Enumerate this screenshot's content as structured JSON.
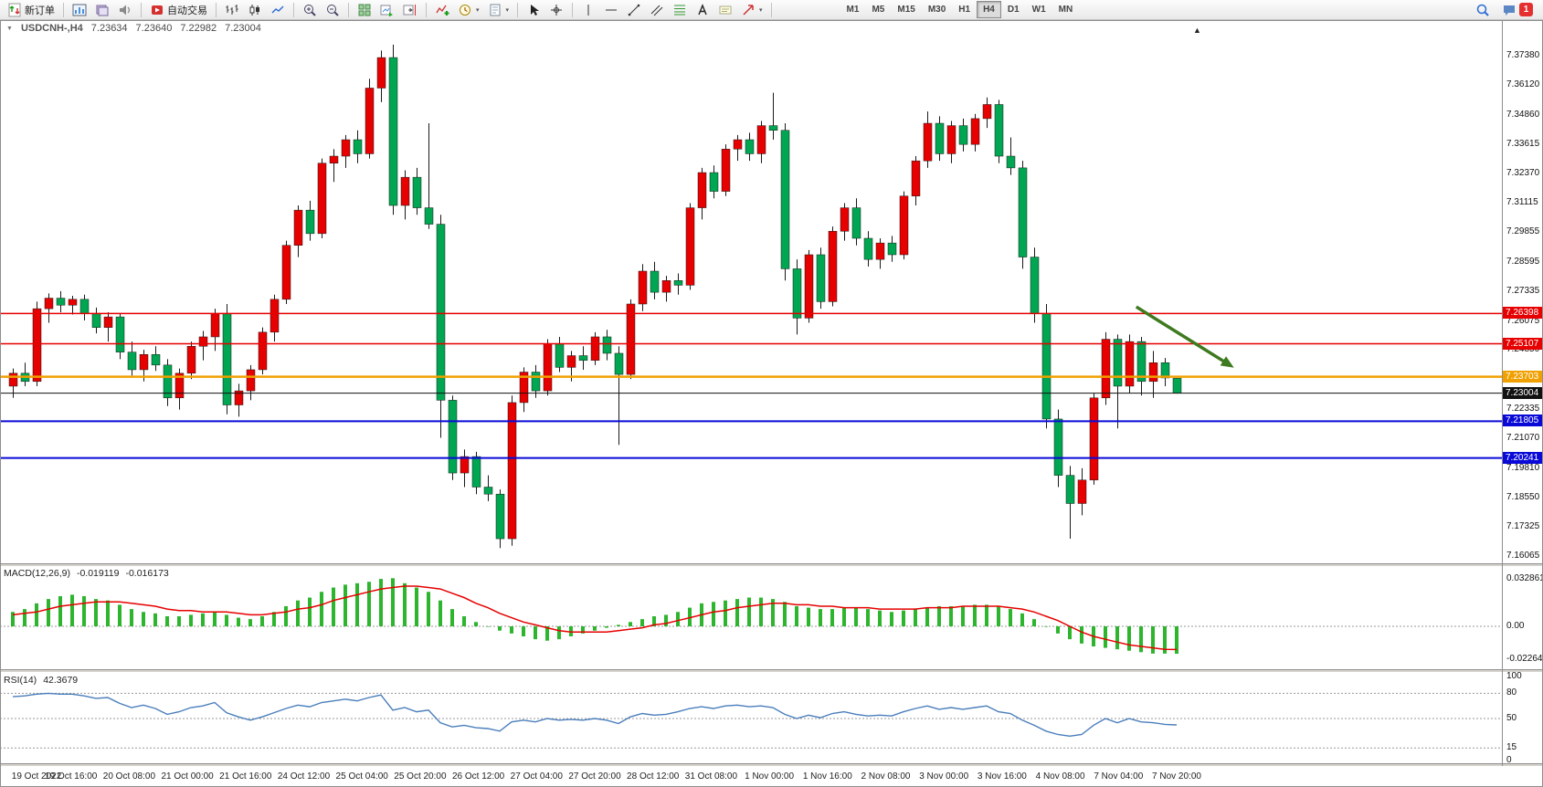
{
  "toolbar": {
    "new_order_label": "新订单",
    "autotrade_label": "自动交易",
    "timeframes": [
      "M1",
      "M5",
      "M15",
      "M30",
      "H1",
      "H4",
      "D1",
      "W1",
      "MN"
    ],
    "active_timeframe": "H4",
    "notification_count": "1"
  },
  "chart": {
    "title": {
      "symbol": "USDCNH-,H4",
      "open": "7.23634",
      "high": "7.23640",
      "low": "7.22982",
      "close": "7.23004"
    },
    "price_axis_labels": [
      "7.37380",
      "7.36120",
      "7.34860",
      "7.33615",
      "7.32370",
      "7.31115",
      "7.29855",
      "7.28595",
      "7.27335",
      "7.26075",
      "7.24850",
      "7.23590",
      "7.22335",
      "7.21070",
      "7.19810",
      "7.18550",
      "7.17325",
      "7.16065"
    ],
    "line_levels": [
      {
        "label": "7.26398",
        "value": 7.26398,
        "color": "#e60000",
        "width": 1.5
      },
      {
        "label": "7.25107",
        "value": 7.25107,
        "color": "#e60000",
        "width": 1.5
      },
      {
        "label": "7.23703",
        "value": 7.23703,
        "color": "#f0a000",
        "width": 2.5
      },
      {
        "label": "7.23004",
        "value": 7.23004,
        "color": "#111111",
        "width": 1
      },
      {
        "label": "7.21805",
        "value": 7.21805,
        "color": "#0a0ad8",
        "width": 2
      },
      {
        "label": "7.20241",
        "value": 7.20241,
        "color": "#0a0ad8",
        "width": 2
      }
    ],
    "arrow": {
      "color": "#3e7a1f",
      "from_bar": 94.6,
      "from_price": 7.2668,
      "to_bar": 102.5,
      "to_price": 7.2419
    }
  },
  "macd": {
    "name": "MACD(12,26,9)",
    "value": "-0.019119",
    "signal_value": "-0.016173",
    "axis_labels": [
      "0.032861",
      "0.00",
      "-0.022641"
    ],
    "histogram_color": "#2db52d",
    "signal_color": "#e60000"
  },
  "rsi": {
    "name": "RSI(14)",
    "value": "42.3679",
    "axis_labels": [
      "100",
      "80",
      "50",
      "15",
      "0"
    ],
    "levels": [
      80,
      50,
      15
    ],
    "line_color": "#4a7ebb"
  },
  "time_axis": {
    "labels": [
      "19 Oct 2022",
      "19 Oct 16:00",
      "20 Oct 08:00",
      "21 Oct 00:00",
      "21 Oct 16:00",
      "24 Oct 12:00",
      "25 Oct 04:00",
      "25 Oct 20:00",
      "26 Oct 12:00",
      "27 Oct 04:00",
      "27 Oct 20:00",
      "28 Oct 12:00",
      "31 Oct 08:00",
      "1 Nov 00:00",
      "1 Nov 16:00",
      "2 Nov 08:00",
      "3 Nov 00:00",
      "3 Nov 16:00",
      "4 Nov 08:00",
      "7 Nov 04:00",
      "7 Nov 20:00"
    ]
  },
  "chart_data": {
    "type": "candlestick",
    "symbol": "USDCNH",
    "period": "H4",
    "price_range": [
      7.16065,
      7.3738
    ],
    "colors": {
      "bull": "#e60000",
      "bear": "#00a651",
      "wick": "#1a1a1a"
    },
    "candles": [
      [
        7.233,
        7.2405,
        7.228,
        7.2385
      ],
      [
        7.2385,
        7.243,
        7.233,
        7.235
      ],
      [
        7.235,
        7.269,
        7.233,
        7.266
      ],
      [
        7.266,
        7.2725,
        7.26,
        7.2705
      ],
      [
        7.2705,
        7.2735,
        7.2645,
        7.2675
      ],
      [
        7.2675,
        7.2715,
        7.2635,
        7.27
      ],
      [
        7.27,
        7.272,
        7.261,
        7.264
      ],
      [
        7.264,
        7.2665,
        7.2555,
        7.258
      ],
      [
        7.258,
        7.2645,
        7.252,
        7.2625
      ],
      [
        7.2625,
        7.264,
        7.2445,
        7.2475
      ],
      [
        7.2475,
        7.252,
        7.2375,
        7.24
      ],
      [
        7.24,
        7.2485,
        7.235,
        7.2465
      ],
      [
        7.2465,
        7.25,
        7.2395,
        7.242
      ],
      [
        7.242,
        7.2445,
        7.2245,
        7.228
      ],
      [
        7.228,
        7.2405,
        7.223,
        7.2385
      ],
      [
        7.2385,
        7.252,
        7.236,
        7.25
      ],
      [
        7.25,
        7.2565,
        7.244,
        7.254
      ],
      [
        7.254,
        7.266,
        7.248,
        7.264
      ],
      [
        7.264,
        7.268,
        7.221,
        7.225
      ],
      [
        7.225,
        7.234,
        7.22,
        7.231
      ],
      [
        7.231,
        7.242,
        7.227,
        7.24
      ],
      [
        7.24,
        7.258,
        7.238,
        7.256
      ],
      [
        7.256,
        7.272,
        7.252,
        7.27
      ],
      [
        7.27,
        7.295,
        7.268,
        7.293
      ],
      [
        7.293,
        7.31,
        7.288,
        7.308
      ],
      [
        7.308,
        7.312,
        7.295,
        7.298
      ],
      [
        7.298,
        7.33,
        7.296,
        7.328
      ],
      [
        7.328,
        7.334,
        7.32,
        7.331
      ],
      [
        7.331,
        7.34,
        7.326,
        7.338
      ],
      [
        7.338,
        7.342,
        7.328,
        7.332
      ],
      [
        7.332,
        7.364,
        7.33,
        7.36
      ],
      [
        7.36,
        7.376,
        7.354,
        7.373
      ],
      [
        7.373,
        7.3785,
        7.306,
        7.31
      ],
      [
        7.31,
        7.325,
        7.304,
        7.322
      ],
      [
        7.322,
        7.326,
        7.306,
        7.309
      ],
      [
        7.309,
        7.345,
        7.3,
        7.302
      ],
      [
        7.302,
        7.306,
        7.211,
        7.227
      ],
      [
        7.227,
        7.229,
        7.193,
        7.196
      ],
      [
        7.196,
        7.206,
        7.19,
        7.203
      ],
      [
        7.203,
        7.205,
        7.187,
        7.19
      ],
      [
        7.19,
        7.195,
        7.184,
        7.187
      ],
      [
        7.187,
        7.189,
        7.164,
        7.168
      ],
      [
        7.168,
        7.229,
        7.165,
        7.226
      ],
      [
        7.226,
        7.241,
        7.222,
        7.239
      ],
      [
        7.239,
        7.242,
        7.228,
        7.231
      ],
      [
        7.231,
        7.253,
        7.229,
        7.251
      ],
      [
        7.251,
        7.254,
        7.239,
        7.241
      ],
      [
        7.241,
        7.248,
        7.235,
        7.246
      ],
      [
        7.246,
        7.25,
        7.24,
        7.244
      ],
      [
        7.244,
        7.256,
        7.242,
        7.254
      ],
      [
        7.254,
        7.257,
        7.244,
        7.247
      ],
      [
        7.247,
        7.25,
        7.208,
        7.238
      ],
      [
        7.238,
        7.27,
        7.236,
        7.268
      ],
      [
        7.268,
        7.285,
        7.265,
        7.282
      ],
      [
        7.282,
        7.286,
        7.27,
        7.273
      ],
      [
        7.273,
        7.28,
        7.269,
        7.278
      ],
      [
        7.278,
        7.281,
        7.272,
        7.276
      ],
      [
        7.276,
        7.311,
        7.274,
        7.309
      ],
      [
        7.309,
        7.326,
        7.304,
        7.324
      ],
      [
        7.324,
        7.327,
        7.313,
        7.316
      ],
      [
        7.316,
        7.336,
        7.314,
        7.334
      ],
      [
        7.334,
        7.34,
        7.329,
        7.338
      ],
      [
        7.338,
        7.341,
        7.329,
        7.332
      ],
      [
        7.332,
        7.346,
        7.328,
        7.344
      ],
      [
        7.344,
        7.358,
        7.338,
        7.342
      ],
      [
        7.342,
        7.345,
        7.278,
        7.283
      ],
      [
        7.283,
        7.287,
        7.255,
        7.262
      ],
      [
        7.262,
        7.291,
        7.26,
        7.289
      ],
      [
        7.289,
        7.292,
        7.266,
        7.269
      ],
      [
        7.269,
        7.301,
        7.267,
        7.299
      ],
      [
        7.299,
        7.311,
        7.295,
        7.309
      ],
      [
        7.309,
        7.313,
        7.293,
        7.296
      ],
      [
        7.296,
        7.299,
        7.284,
        7.287
      ],
      [
        7.287,
        7.296,
        7.283,
        7.294
      ],
      [
        7.294,
        7.297,
        7.286,
        7.289
      ],
      [
        7.289,
        7.316,
        7.287,
        7.314
      ],
      [
        7.314,
        7.331,
        7.31,
        7.329
      ],
      [
        7.329,
        7.35,
        7.326,
        7.345
      ],
      [
        7.345,
        7.348,
        7.329,
        7.332
      ],
      [
        7.332,
        7.346,
        7.328,
        7.344
      ],
      [
        7.344,
        7.347,
        7.333,
        7.336
      ],
      [
        7.336,
        7.349,
        7.333,
        7.347
      ],
      [
        7.347,
        7.356,
        7.343,
        7.353
      ],
      [
        7.353,
        7.355,
        7.328,
        7.331
      ],
      [
        7.331,
        7.339,
        7.323,
        7.326
      ],
      [
        7.326,
        7.329,
        7.283,
        7.288
      ],
      [
        7.288,
        7.292,
        7.26,
        7.264
      ],
      [
        7.264,
        7.268,
        7.215,
        7.219
      ],
      [
        7.219,
        7.223,
        7.19,
        7.195
      ],
      [
        7.195,
        7.199,
        7.168,
        7.183
      ],
      [
        7.183,
        7.198,
        7.178,
        7.193
      ],
      [
        7.193,
        7.23,
        7.191,
        7.228
      ],
      [
        7.228,
        7.256,
        7.225,
        7.253
      ],
      [
        7.253,
        7.255,
        7.215,
        7.233
      ],
      [
        7.233,
        7.255,
        7.23,
        7.252
      ],
      [
        7.252,
        7.254,
        7.229,
        7.235
      ],
      [
        7.235,
        7.248,
        7.228,
        7.243
      ],
      [
        7.243,
        7.245,
        7.233,
        7.2365
      ],
      [
        7.23634,
        7.2364,
        7.22982,
        7.23004
      ]
    ],
    "indicators": {
      "macd": {
        "range": [
          -0.022641,
          0.032861
        ],
        "histogram": [
          0.01,
          0.012,
          0.016,
          0.019,
          0.021,
          0.022,
          0.021,
          0.019,
          0.018,
          0.015,
          0.012,
          0.01,
          0.009,
          0.007,
          0.007,
          0.008,
          0.009,
          0.01,
          0.008,
          0.006,
          0.005,
          0.007,
          0.01,
          0.014,
          0.018,
          0.02,
          0.024,
          0.027,
          0.029,
          0.03,
          0.031,
          0.033,
          0.0335,
          0.03,
          0.027,
          0.024,
          0.018,
          0.012,
          0.007,
          0.003,
          0.0,
          -0.003,
          -0.005,
          -0.007,
          -0.009,
          -0.01,
          -0.009,
          -0.007,
          -0.005,
          -0.003,
          -0.001,
          0.001,
          0.003,
          0.005,
          0.007,
          0.008,
          0.01,
          0.013,
          0.016,
          0.017,
          0.018,
          0.019,
          0.02,
          0.02,
          0.019,
          0.017,
          0.014,
          0.013,
          0.012,
          0.012,
          0.013,
          0.013,
          0.012,
          0.011,
          0.01,
          0.011,
          0.012,
          0.013,
          0.014,
          0.014,
          0.014,
          0.015,
          0.015,
          0.014,
          0.012,
          0.009,
          0.005,
          0.0,
          -0.005,
          -0.009,
          -0.012,
          -0.014,
          -0.015,
          -0.016,
          -0.017,
          -0.018,
          -0.019,
          -0.019,
          -0.019119
        ],
        "signal": [
          0.008,
          0.009,
          0.01,
          0.012,
          0.014,
          0.015,
          0.016,
          0.017,
          0.017,
          0.017,
          0.016,
          0.015,
          0.014,
          0.012,
          0.011,
          0.011,
          0.01,
          0.01,
          0.01,
          0.009,
          0.008,
          0.008,
          0.009,
          0.01,
          0.012,
          0.013,
          0.015,
          0.018,
          0.02,
          0.022,
          0.024,
          0.026,
          0.027,
          0.028,
          0.028,
          0.027,
          0.026,
          0.023,
          0.02,
          0.016,
          0.013,
          0.009,
          0.006,
          0.003,
          0.001,
          -0.001,
          -0.003,
          -0.004,
          -0.004,
          -0.004,
          -0.004,
          -0.003,
          -0.002,
          -0.001,
          0.001,
          0.002,
          0.004,
          0.006,
          0.008,
          0.01,
          0.011,
          0.013,
          0.014,
          0.015,
          0.016,
          0.016,
          0.015,
          0.015,
          0.014,
          0.014,
          0.013,
          0.013,
          0.013,
          0.012,
          0.012,
          0.012,
          0.012,
          0.013,
          0.013,
          0.013,
          0.014,
          0.014,
          0.014,
          0.014,
          0.013,
          0.012,
          0.01,
          0.007,
          0.004,
          0.0,
          -0.004,
          -0.007,
          -0.009,
          -0.011,
          -0.013,
          -0.014,
          -0.015,
          -0.016,
          -0.016173
        ]
      },
      "rsi": {
        "range": [
          0,
          100
        ],
        "values": [
          76,
          77,
          79,
          80,
          79,
          79,
          77,
          74,
          75,
          68,
          63,
          66,
          62,
          55,
          58,
          63,
          65,
          69,
          57,
          52,
          48,
          52,
          57,
          62,
          66,
          64,
          69,
          71,
          73,
          71,
          75,
          78,
          60,
          63,
          58,
          60,
          45,
          40,
          42,
          39,
          38,
          35,
          46,
          48,
          46,
          50,
          48,
          49,
          48,
          50,
          48,
          44,
          52,
          56,
          54,
          55,
          58,
          62,
          64,
          62,
          65,
          66,
          64,
          65,
          63,
          55,
          50,
          54,
          51,
          56,
          58,
          55,
          53,
          54,
          53,
          58,
          62,
          65,
          61,
          63,
          61,
          63,
          65,
          58,
          56,
          48,
          42,
          35,
          31,
          29,
          31,
          42,
          50,
          45,
          50,
          46,
          45,
          43,
          42.3679
        ]
      }
    }
  }
}
